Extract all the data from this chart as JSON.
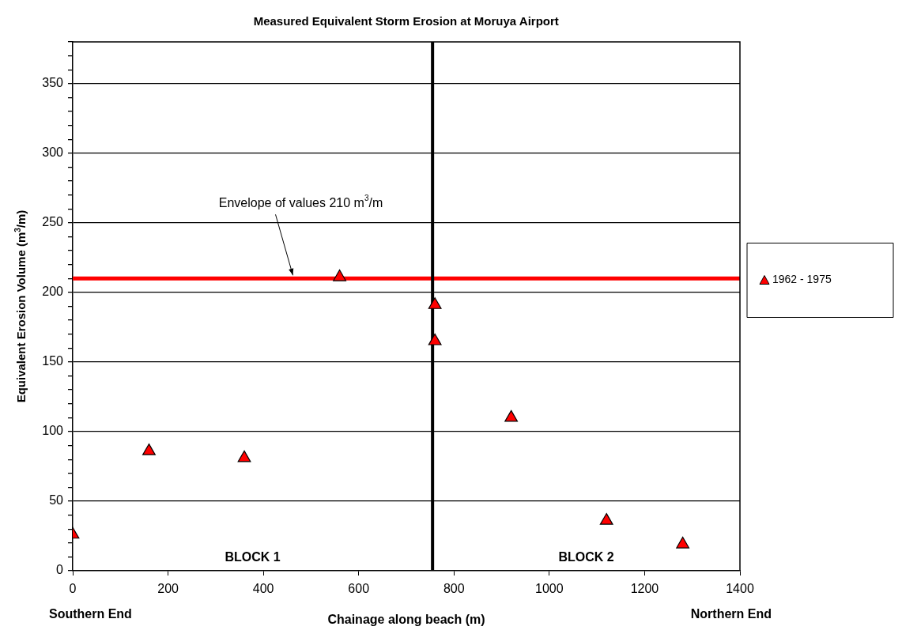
{
  "chart_data": {
    "type": "scatter",
    "title": "Measured Equivalent Storm Erosion at Moruya Airport",
    "xlabel": "Chainage along beach (m)",
    "ylabel": "Equivalent Erosion Volume (m$^{3}$/m)",
    "x": [
      0,
      160,
      360,
      560,
      760,
      760,
      920,
      1120,
      1280
    ],
    "series": [
      {
        "name": "1962 - 1975",
        "color": "#ff0000",
        "values": [
          26,
          86,
          81,
          211,
          191,
          165,
          110,
          36,
          19
        ]
      }
    ],
    "xlim": [
      0,
      1400
    ],
    "xticks": [
      0,
      200,
      400,
      600,
      800,
      1000,
      1200,
      1400
    ],
    "ylim": [
      0,
      380
    ],
    "yticks": [
      0,
      {
        "value": 10,
        "label": null
      },
      {
        "value": 20,
        "label": null
      },
      {
        "value": 30,
        "label": null
      },
      {
        "value": 40,
        "label": null
      },
      50,
      {
        "value": 60,
        "label": null
      },
      {
        "value": 70,
        "label": null
      },
      {
        "value": 80,
        "label": null
      },
      {
        "value": 90,
        "label": null
      },
      100,
      {
        "value": 110,
        "label": null
      },
      {
        "value": 120,
        "label": null
      },
      {
        "value": 130,
        "label": null
      },
      {
        "value": 140,
        "label": null
      },
      150,
      {
        "value": 160,
        "label": null
      },
      {
        "value": 170,
        "label": null
      },
      {
        "value": 180,
        "label": null
      },
      {
        "value": 190,
        "label": null
      },
      200,
      {
        "value": 210,
        "label": null
      },
      {
        "value": 220,
        "label": null
      },
      {
        "value": 230,
        "label": null
      },
      {
        "value": 240,
        "label": null
      },
      250,
      {
        "value": 260,
        "label": null
      },
      {
        "value": 270,
        "label": null
      },
      {
        "value": 280,
        "label": null
      },
      {
        "value": 290,
        "label": null
      },
      300,
      {
        "value": 310,
        "label": null
      },
      {
        "value": 320,
        "label": null
      },
      {
        "value": 330,
        "label": null
      },
      {
        "value": 340,
        "label": null
      },
      350,
      {
        "value": 360,
        "label": null
      },
      {
        "value": 370,
        "label": null
      },
      {
        "value": 380,
        "label": null
      }
    ],
    "ref_lines": [
      {
        "axis": "y",
        "value": 210,
        "color": "#ff0000",
        "label": "Envelope of values 210 m$^{3}$/m"
      },
      {
        "axis": "x",
        "value": 755,
        "color": "#000000"
      }
    ],
    "annotations": [
      "BLOCK 1",
      "BLOCK 2",
      "Southern End",
      "Northern End"
    ],
    "grid": "y",
    "legend": "right",
    "marker": "triangle"
  }
}
